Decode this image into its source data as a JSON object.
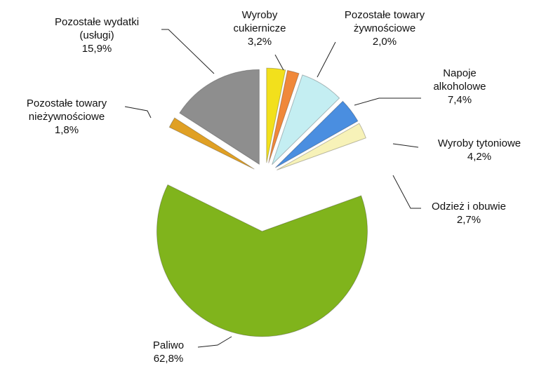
{
  "chart_data": {
    "type": "pie",
    "categories": [
      "Wyroby cukiernicze",
      "Pozostałe towary żywnościowe",
      "Napoje alkoholowe",
      "Wyroby tytoniowe",
      "Odzież i obuwie",
      "Paliwo",
      "Pozostałe towary nieżywnościowe",
      "Pozostałe wydatki (usługi)"
    ],
    "values": [
      3.2,
      2.0,
      7.4,
      4.2,
      2.7,
      62.8,
      1.8,
      15.9
    ],
    "value_labels": [
      "3,2%",
      "2,0%",
      "7,4%",
      "4,2%",
      "2,7%",
      "62,8%",
      "1,8%",
      "15,9%"
    ],
    "colors": [
      "#f2e01c",
      "#f0883a",
      "#c4eef2",
      "#4a8ee0",
      "#f7f2b8",
      "#80b41c",
      "#e0a024",
      "#8e8e8e"
    ]
  }
}
